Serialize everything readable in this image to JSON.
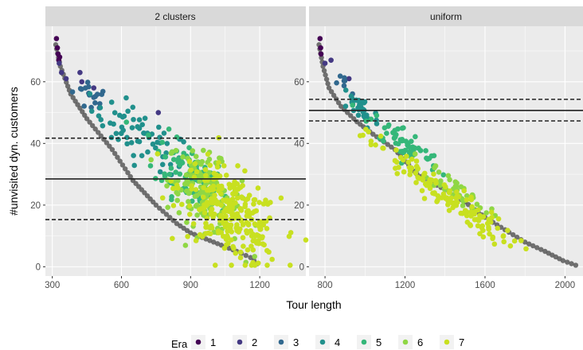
{
  "colors": {
    "panel_bg": "#EBEBEB",
    "strip_bg": "#D9D9D9",
    "grid_major": "#FFFFFF",
    "reference_line": "#222222",
    "gray_points": "#595959",
    "era_colors": [
      "#440154",
      "#443983",
      "#31688E",
      "#21908C",
      "#35B779",
      "#8FD744",
      "#C8E020"
    ]
  },
  "chart_data": {
    "type": "scatter",
    "x_label": "Tour length",
    "y_label": "#unvisited dyn. customers",
    "legend": {
      "title": "Era",
      "position": "bottom",
      "entries": [
        "1",
        "2",
        "3",
        "4",
        "5",
        "6",
        "7"
      ]
    },
    "panels": [
      {
        "title": "2 clusters",
        "xlim": [
          270,
          1400
        ],
        "ylim": [
          -3,
          78
        ],
        "x_ticks": [
          300,
          600,
          900,
          1200
        ],
        "x_tick_labels": [
          "300",
          "600",
          "900",
          "1200"
        ],
        "y_ticks": [
          0,
          20,
          40,
          60
        ],
        "y_tick_labels": [
          "0",
          "20",
          "40",
          "60"
        ],
        "hlines": [
          {
            "y": 28.5,
            "style": "solid"
          },
          {
            "y": 41.7,
            "style": "dashed"
          },
          {
            "y": 15.3,
            "style": "dashed"
          }
        ],
        "gray_curve": [
          [
            315,
            72
          ],
          [
            335,
            65
          ],
          [
            380,
            56
          ],
          [
            450,
            48
          ],
          [
            560,
            38
          ],
          [
            650,
            28
          ],
          [
            750,
            20
          ],
          [
            840,
            14
          ],
          [
            900,
            11
          ],
          [
            1000,
            8
          ],
          [
            1100,
            5
          ],
          [
            1160,
            3
          ],
          [
            1205,
            0
          ]
        ],
        "era_clouds": [
          {
            "era": 1,
            "points": [
              [
                318,
                74
              ],
              [
                322,
                71
              ],
              [
                325,
                69
              ],
              [
                328,
                67
              ],
              [
                332,
                68
              ]
            ]
          },
          {
            "era": 2,
            "points": [
              [
                330,
                66
              ],
              [
                340,
                63
              ],
              [
                360,
                61
              ],
              [
                420,
                63
              ],
              [
                428,
                60
              ],
              [
                480,
                58
              ],
              [
                760,
                50
              ]
            ]
          },
          {
            "era": 3,
            "cx": 470,
            "cy": 55,
            "sx": 40,
            "sy": 3,
            "n": 18,
            "slope": -0.04
          },
          {
            "era": 4,
            "cx": 690,
            "cy": 42,
            "sx": 110,
            "sy": 4,
            "n": 65,
            "slope": -0.04
          },
          {
            "era": 5,
            "cx": 900,
            "cy": 30,
            "sx": 80,
            "sy": 5,
            "n": 110,
            "slope": -0.04
          },
          {
            "era": 6,
            "cx": 960,
            "cy": 24,
            "sx": 80,
            "sy": 6,
            "n": 140,
            "slope": -0.04
          },
          {
            "era": 7,
            "cx": 1070,
            "cy": 17,
            "sx": 110,
            "sy": 7,
            "n": 260,
            "slope": -0.04
          }
        ]
      },
      {
        "title": "uniform",
        "xlim": [
          720,
          2090
        ],
        "ylim": [
          -3,
          78
        ],
        "x_ticks": [
          800,
          1200,
          1600,
          2000
        ],
        "x_tick_labels": [
          "800",
          "1200",
          "1600",
          "2000"
        ],
        "y_ticks": [
          0,
          20,
          40,
          60
        ],
        "y_tick_labels": [
          "0",
          "20",
          "40",
          "60"
        ],
        "hlines": [
          {
            "y": 50.7,
            "style": "solid"
          },
          {
            "y": 54.3,
            "style": "dashed"
          },
          {
            "y": 47.3,
            "style": "dashed"
          }
        ],
        "gray_curve": [
          [
            770,
            72
          ],
          [
            790,
            65
          ],
          [
            820,
            58
          ],
          [
            880,
            52
          ],
          [
            960,
            47
          ],
          [
            1040,
            43
          ],
          [
            1150,
            38
          ],
          [
            1260,
            30
          ],
          [
            1400,
            25
          ],
          [
            1500,
            21
          ],
          [
            1600,
            16
          ],
          [
            1700,
            12
          ],
          [
            1800,
            8
          ],
          [
            1900,
            5
          ],
          [
            1990,
            2
          ],
          [
            2075,
            0
          ]
        ],
        "era_clouds": [
          {
            "era": 1,
            "points": [
              [
                775,
                74
              ],
              [
                778,
                71
              ],
              [
                780,
                69
              ]
            ]
          },
          {
            "era": 2,
            "points": [
              [
                800,
                66
              ],
              [
                830,
                67
              ],
              [
                920,
                61
              ]
            ]
          },
          {
            "era": 3,
            "cx": 910,
            "cy": 58,
            "sx": 25,
            "sy": 2,
            "n": 8,
            "slope": -0.045
          },
          {
            "era": 4,
            "cx": 980,
            "cy": 51,
            "sx": 45,
            "sy": 2.5,
            "n": 35,
            "slope": -0.045
          },
          {
            "era": 5,
            "cx": 1200,
            "cy": 40,
            "sx": 90,
            "sy": 2.5,
            "n": 60,
            "slope": -0.045
          },
          {
            "era": 6,
            "cx": 1460,
            "cy": 25,
            "sx": 80,
            "sy": 2,
            "n": 45,
            "slope": -0.045
          },
          {
            "era": 7,
            "cx": 1380,
            "cy": 24,
            "sx": 180,
            "sy": 2.5,
            "n": 140,
            "slope": -0.045
          }
        ]
      }
    ]
  }
}
